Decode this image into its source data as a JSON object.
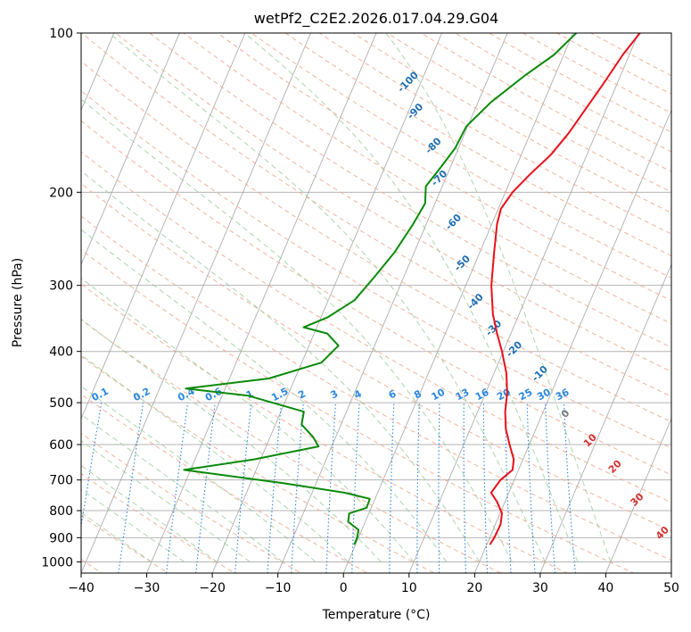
{
  "chart_data": {
    "type": "line",
    "title": "wetPf2_C2E2.2026.017.04.29.G04",
    "xlabel": "Temperature (°C)",
    "ylabel": "Pressure (hPa)",
    "xlim": [
      -40,
      50
    ],
    "ylim": [
      1050,
      100
    ],
    "yscale": "log",
    "grid": true,
    "x_ticks": [
      "−40",
      "−30",
      "−20",
      "−10",
      "0",
      "10",
      "20",
      "30",
      "40",
      "50"
    ],
    "y_ticks": [
      "100",
      "200",
      "300",
      "400",
      "500",
      "600",
      "700",
      "800",
      "900",
      "1000"
    ],
    "series": [
      {
        "role": "temperature",
        "color": "#e8101a",
        "points": [
          [
            20.5,
            925
          ],
          [
            20.7,
            900
          ],
          [
            20.8,
            850
          ],
          [
            20.3,
            810
          ],
          [
            18.8,
            770
          ],
          [
            17.3,
            740
          ],
          [
            17.9,
            700
          ],
          [
            19.1,
            670
          ],
          [
            18.6,
            640
          ],
          [
            17.0,
            600
          ],
          [
            15.4,
            560
          ],
          [
            14.2,
            520
          ],
          [
            13.3,
            480
          ],
          [
            11.9,
            440
          ],
          [
            9.8,
            400
          ],
          [
            7.9,
            370
          ],
          [
            6.0,
            340
          ],
          [
            3.9,
            300
          ],
          [
            2.2,
            260
          ],
          [
            0.8,
            230
          ],
          [
            0.4,
            215
          ],
          [
            1.1,
            200
          ],
          [
            2.6,
            185
          ],
          [
            4.5,
            170
          ],
          [
            5.8,
            155
          ],
          [
            6.8,
            140
          ],
          [
            7.9,
            125
          ],
          [
            9.0,
            110
          ],
          [
            10.2,
            100
          ]
        ]
      },
      {
        "role": "dewpoint",
        "color": "#0a8a0a",
        "points": [
          [
            -0.2,
            925
          ],
          [
            -0.2,
            900
          ],
          [
            -0.5,
            870
          ],
          [
            -2.6,
            840
          ],
          [
            -3.0,
            810
          ],
          [
            -0.7,
            790
          ],
          [
            -0.8,
            760
          ],
          [
            -5.0,
            740
          ],
          [
            -15.0,
            710
          ],
          [
            -31.0,
            670
          ],
          [
            -21.0,
            640
          ],
          [
            -12.0,
            605
          ],
          [
            -13.5,
            580
          ],
          [
            -16.0,
            550
          ],
          [
            -16.5,
            520
          ],
          [
            -26.0,
            485
          ],
          [
            -36.0,
            470
          ],
          [
            -24.0,
            450
          ],
          [
            -17.0,
            420
          ],
          [
            -15.5,
            390
          ],
          [
            -18.0,
            370
          ],
          [
            -22.0,
            360
          ],
          [
            -19.0,
            345
          ],
          [
            -16.0,
            320
          ],
          [
            -14.5,
            290
          ],
          [
            -13.0,
            260
          ],
          [
            -12.0,
            230
          ],
          [
            -11.5,
            210
          ],
          [
            -12.5,
            195
          ],
          [
            -11.5,
            180
          ],
          [
            -10.5,
            165
          ],
          [
            -10.2,
            150
          ],
          [
            -8.0,
            135
          ],
          [
            -4.5,
            120
          ],
          [
            -1.5,
            110
          ],
          [
            0.5,
            100
          ]
        ]
      }
    ],
    "dry_adiabat_labels": [
      "-100",
      "-90",
      "-80",
      "-70",
      "-60",
      "-50",
      "-40",
      "-30",
      "-20",
      "-10",
      "0",
      "10",
      "20",
      "30",
      "40"
    ],
    "mixing_ratio_labels": [
      "0.1",
      "0.2",
      "0.4",
      "0.6",
      "1",
      "1.5",
      "2",
      "3",
      "4",
      "6",
      "8",
      "10",
      "13",
      "16",
      "20",
      "25",
      "30",
      "36"
    ],
    "colors": {
      "isotherm": "#9a9a9a",
      "dry_adiabat": "#f4a58a",
      "moist_adiabat": "#98cc98",
      "mixing_ratio": "#2a87e0",
      "label_cold": "#1f6fb0",
      "label_zero": "#7a7a7a",
      "label_warm": "#d43030"
    }
  }
}
